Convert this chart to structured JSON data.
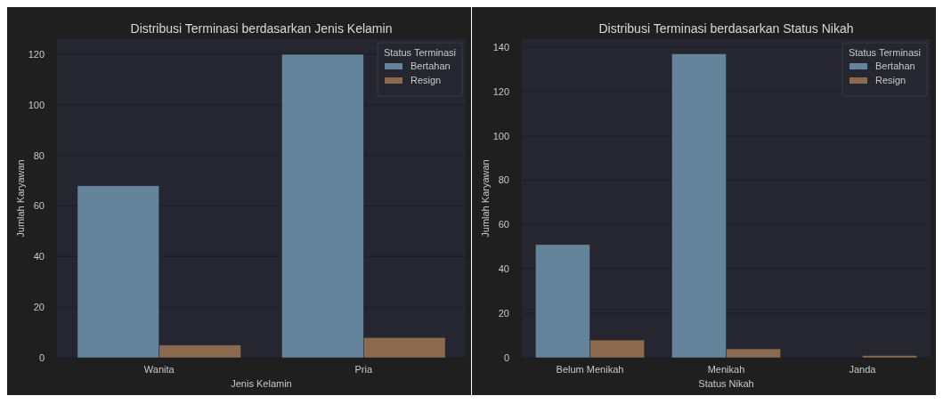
{
  "chart_data": [
    {
      "type": "bar",
      "title": "Distribusi Terminasi berdasarkan Jenis Kelamin",
      "xlabel": "Jenis Kelamin",
      "ylabel": "Jumlah Karyawan",
      "legend_title": "Status Terminasi",
      "categories": [
        "Wanita",
        "Pria"
      ],
      "series": [
        {
          "name": "Bertahan",
          "color": "#64849b",
          "values": [
            68,
            120
          ]
        },
        {
          "name": "Resign",
          "color": "#8c6a4f",
          "values": [
            5,
            8
          ]
        }
      ],
      "ylim": [
        0,
        126
      ],
      "yticks": [
        0,
        20,
        40,
        60,
        80,
        100,
        120
      ],
      "grid": "y",
      "legend": "top right"
    },
    {
      "type": "bar",
      "title": "Distribusi Terminasi berdasarkan Status Nikah",
      "xlabel": "Status Nikah",
      "ylabel": "Jumlah Karyawan",
      "legend_title": "Status Terminasi",
      "categories": [
        "Belum Menikah",
        "Menikah",
        "Janda"
      ],
      "series": [
        {
          "name": "Bertahan",
          "color": "#64849b",
          "values": [
            51,
            137,
            null
          ]
        },
        {
          "name": "Resign",
          "color": "#8c6a4f",
          "values": [
            8,
            4,
            1
          ]
        }
      ],
      "ylim": [
        0,
        143.6
      ],
      "yticks": [
        0,
        20,
        40,
        60,
        80,
        100,
        120,
        140
      ],
      "grid": "y",
      "legend": "top right"
    }
  ]
}
